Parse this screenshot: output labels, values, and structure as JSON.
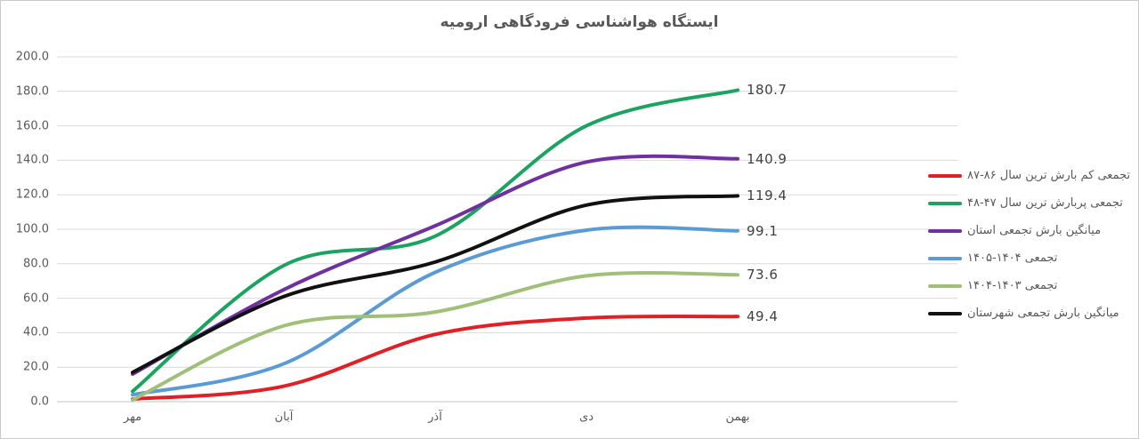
{
  "chart_data": {
    "type": "line",
    "title": "ایستگاه هواشناسی فرودگاهی ارومیه",
    "categories": [
      "مهر",
      "آبان",
      "آذر",
      "دی",
      "بهمن"
    ],
    "series": [
      {
        "name": "تجمعی کم بارش ترین سال ۸۶-۸۷",
        "color": "#e02024",
        "values": [
          1.5,
          9,
          39,
          48.5,
          49.4
        ],
        "end_label": "49.4"
      },
      {
        "name": "تجمعی پربارش ترین سال ۴۷-۴۸",
        "color": "#1ba45f",
        "values": [
          6,
          79,
          96,
          160,
          180.7
        ],
        "end_label": "180.7"
      },
      {
        "name": "میانگین بارش تجمعی استان",
        "color": "#7030a0",
        "values": [
          16,
          65,
          102,
          139,
          140.9
        ],
        "end_label": "140.9"
      },
      {
        "name": "تجمعی ۱۴۰۴-۱۴۰۵",
        "color": "#5b9bd5",
        "values": [
          4,
          22,
          75,
          99.5,
          99.1
        ],
        "end_label": "99.1"
      },
      {
        "name": "تجمعی ۱۴۰۳-۱۴۰۴",
        "color": "#a0c07a",
        "values": [
          1,
          44,
          52,
          73,
          73.6
        ],
        "end_label": "73.6"
      },
      {
        "name": "میانگین بارش تجمعی شهرستان",
        "color": "#111111",
        "values": [
          17,
          61,
          81,
          114,
          119.4
        ],
        "end_label": "119.4"
      }
    ],
    "ylim": [
      0,
      200
    ],
    "ytick_step": 20,
    "y_tick_labels": [
      "0.0",
      "20.0",
      "40.0",
      "60.0",
      "80.0",
      "100.0",
      "120.0",
      "140.0",
      "160.0",
      "180.0",
      "200.0"
    ],
    "xlabel": "",
    "ylabel": "",
    "grid": true,
    "legend_position": "right",
    "colors": {
      "grid": "#d9d9d9",
      "baseline": "#c6c6c6",
      "axis_text": "#595959",
      "title_text": "#595959",
      "data_label_text": "#404040"
    }
  }
}
